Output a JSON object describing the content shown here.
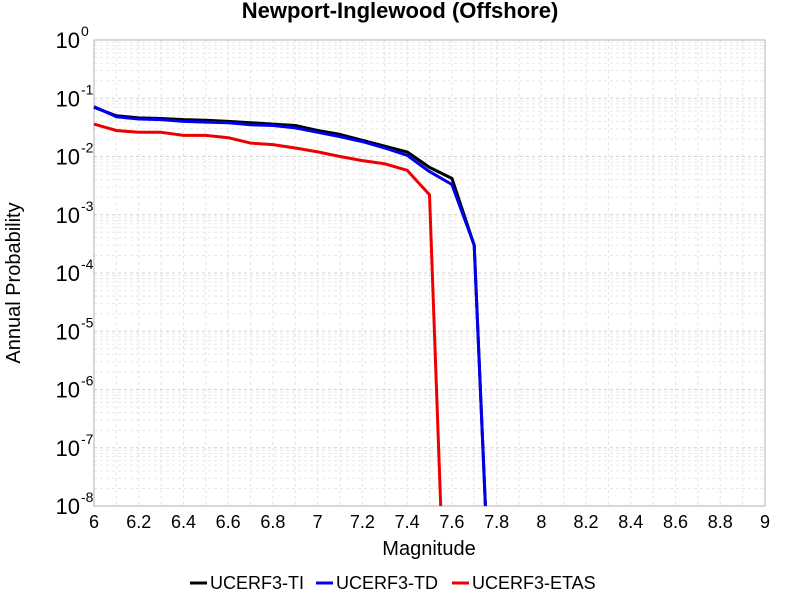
{
  "chart_data": {
    "type": "line",
    "title": "Newport-Inglewood (Offshore)",
    "xlabel": "Magnitude",
    "ylabel": "Annual Probability",
    "x_ticks": [
      "6",
      "6.2",
      "6.4",
      "6.6",
      "6.8",
      "7",
      "7.2",
      "7.4",
      "7.6",
      "7.8",
      "8",
      "8.2",
      "8.4",
      "8.6",
      "8.8",
      "9"
    ],
    "y_ticks": [
      {
        "base": "10",
        "exp": "0"
      },
      {
        "base": "10",
        "exp": "-1"
      },
      {
        "base": "10",
        "exp": "-2"
      },
      {
        "base": "10",
        "exp": "-3"
      },
      {
        "base": "10",
        "exp": "-4"
      },
      {
        "base": "10",
        "exp": "-5"
      },
      {
        "base": "10",
        "exp": "-6"
      },
      {
        "base": "10",
        "exp": "-7"
      },
      {
        "base": "10",
        "exp": "-8"
      }
    ],
    "xlim": [
      6,
      9
    ],
    "ylim": [
      1e-08,
      1
    ],
    "y_scale": "log",
    "grid": true,
    "legend_position": "bottom",
    "series": [
      {
        "name": "UCERF3-TI",
        "color": "#000000",
        "x": [
          6.0,
          6.1,
          6.2,
          6.3,
          6.4,
          6.5,
          6.6,
          6.7,
          6.8,
          6.9,
          7.0,
          7.1,
          7.2,
          7.3,
          7.4,
          7.5,
          7.6,
          7.7,
          7.75
        ],
        "y": [
          0.07,
          0.05,
          0.046,
          0.045,
          0.043,
          0.042,
          0.04,
          0.038,
          0.036,
          0.034,
          0.028,
          0.024,
          0.019,
          0.015,
          0.012,
          0.0065,
          0.0042,
          0.0003,
          1e-08
        ]
      },
      {
        "name": "UCERF3-TD",
        "color": "#0000ee",
        "x": [
          6.0,
          6.1,
          6.2,
          6.3,
          6.4,
          6.5,
          6.6,
          6.7,
          6.8,
          6.9,
          7.0,
          7.1,
          7.2,
          7.3,
          7.4,
          7.5,
          7.6,
          7.7,
          7.75
        ],
        "y": [
          0.072,
          0.048,
          0.044,
          0.043,
          0.04,
          0.039,
          0.038,
          0.035,
          0.034,
          0.031,
          0.026,
          0.022,
          0.018,
          0.014,
          0.0105,
          0.0055,
          0.0033,
          0.0003,
          1e-08
        ]
      },
      {
        "name": "UCERF3-ETAS",
        "color": "#ee0000",
        "x": [
          6.0,
          6.1,
          6.2,
          6.3,
          6.4,
          6.5,
          6.6,
          6.7,
          6.8,
          6.9,
          7.0,
          7.1,
          7.2,
          7.3,
          7.4,
          7.5,
          7.55
        ],
        "y": [
          0.036,
          0.028,
          0.026,
          0.026,
          0.023,
          0.023,
          0.021,
          0.017,
          0.016,
          0.014,
          0.012,
          0.01,
          0.0085,
          0.0075,
          0.0058,
          0.0022,
          1e-08
        ]
      }
    ]
  }
}
